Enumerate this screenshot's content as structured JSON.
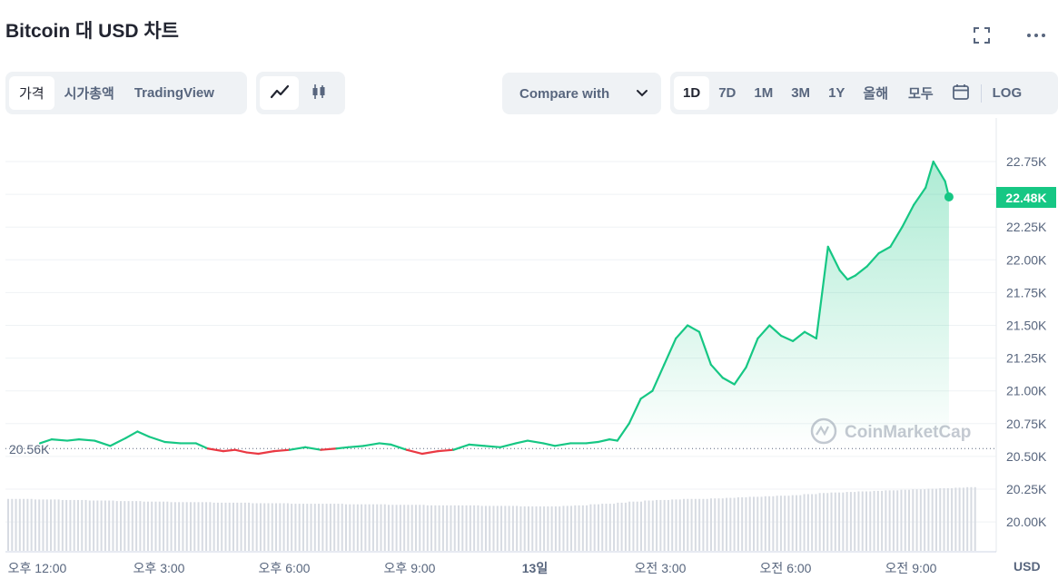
{
  "header": {
    "title": "Bitcoin 대 USD 차트"
  },
  "tabs": [
    {
      "label": "가격",
      "active": true
    },
    {
      "label": "시가총액",
      "active": false
    },
    {
      "label": "TradingView",
      "active": false
    }
  ],
  "chart_types": [
    {
      "icon": "line-chart-icon",
      "active": true
    },
    {
      "icon": "candlestick-icon",
      "active": false
    }
  ],
  "compare": {
    "label": "Compare with"
  },
  "ranges": [
    {
      "label": "1D",
      "active": true
    },
    {
      "label": "7D",
      "active": false
    },
    {
      "label": "1M",
      "active": false
    },
    {
      "label": "3M",
      "active": false
    },
    {
      "label": "1Y",
      "active": false
    },
    {
      "label": "올해",
      "active": false
    },
    {
      "label": "모두",
      "active": false
    }
  ],
  "log_label": "LOG",
  "watermark": "CoinMarketCap",
  "currency_label": "USD",
  "colors": {
    "up": "#16c784",
    "down": "#ea3943",
    "accent": "#16c784"
  },
  "chart_data": {
    "type": "line",
    "y_ticks": [
      "22.75K",
      "22.50K",
      "22.25K",
      "22.00K",
      "21.75K",
      "21.50K",
      "21.25K",
      "21.00K",
      "20.75K",
      "20.50K",
      "20.25K",
      "20.00K"
    ],
    "x_ticks": [
      "오후 12:00",
      "오후 3:00",
      "오후 6:00",
      "오후 9:00",
      "13일",
      "오전 3:00",
      "오전 6:00",
      "오전 9:00"
    ],
    "ylim": [
      19.95,
      22.85
    ],
    "reference_label": "20.56K",
    "reference_value": 20.56,
    "current_label": "22.48K",
    "current_value": 22.48,
    "x_hours": [
      0,
      0.3,
      0.7,
      1.0,
      1.4,
      1.8,
      2.2,
      2.5,
      2.8,
      3.2,
      3.6,
      4.0,
      4.3,
      4.7,
      5.0,
      5.3,
      5.6,
      6.0,
      6.4,
      6.8,
      7.2,
      7.6,
      7.9,
      8.3,
      8.7,
      9.0,
      9.4,
      9.8,
      10.2,
      10.6,
      11.0,
      11.4,
      11.8,
      12.2,
      12.5,
      12.9,
      13.2,
      13.6,
      14.0,
      14.3,
      14.6,
      14.8,
      15.1,
      15.4,
      15.7,
      16.0,
      16.3,
      16.6,
      16.9,
      17.2,
      17.5,
      17.8,
      18.1,
      18.4,
      18.7,
      19.0,
      19.3,
      19.6,
      19.9,
      20.2,
      20.5,
      20.7,
      20.9,
      21.2,
      21.5,
      21.8,
      22.1,
      22.4,
      22.7,
      22.9,
      23.2,
      23.3
    ],
    "values": [
      20.6,
      20.63,
      20.62,
      20.63,
      20.62,
      20.58,
      20.64,
      20.69,
      20.65,
      20.61,
      20.6,
      20.6,
      20.56,
      20.54,
      20.55,
      20.53,
      20.52,
      20.54,
      20.55,
      20.57,
      20.55,
      20.56,
      20.57,
      20.58,
      20.6,
      20.59,
      20.55,
      20.52,
      20.54,
      20.55,
      20.59,
      20.58,
      20.57,
      20.6,
      20.62,
      20.6,
      20.58,
      20.6,
      20.6,
      20.61,
      20.63,
      20.62,
      20.75,
      20.94,
      21.0,
      21.2,
      21.4,
      21.5,
      21.45,
      21.2,
      21.1,
      21.05,
      21.18,
      21.4,
      21.5,
      21.42,
      21.38,
      21.45,
      21.4,
      22.1,
      21.92,
      21.85,
      21.88,
      21.95,
      22.05,
      22.1,
      22.25,
      22.42,
      22.55,
      22.75,
      22.6,
      22.48
    ],
    "volume": [
      0.97,
      0.97,
      0.96,
      0.96,
      0.95,
      0.95,
      0.94,
      0.94,
      0.93,
      0.93,
      0.92,
      0.92,
      0.91,
      0.91,
      0.91,
      0.9,
      0.9,
      0.9,
      0.89,
      0.89,
      0.89,
      0.88,
      0.88,
      0.88,
      0.88,
      0.87,
      0.87,
      0.87,
      0.86,
      0.86,
      0.86,
      0.85,
      0.85,
      0.85,
      0.85,
      0.84,
      0.84,
      0.84,
      0.83,
      0.83,
      0.83,
      0.84,
      0.85,
      0.87,
      0.88,
      0.9,
      0.92,
      0.94,
      0.95,
      0.96,
      0.97,
      0.97,
      0.98,
      0.99,
      1.0,
      1.01,
      1.02,
      1.03,
      1.04,
      1.06,
      1.08,
      1.09,
      1.1,
      1.11,
      1.12,
      1.13,
      1.14,
      1.15,
      1.16,
      1.17,
      1.18,
      1.19
    ]
  }
}
